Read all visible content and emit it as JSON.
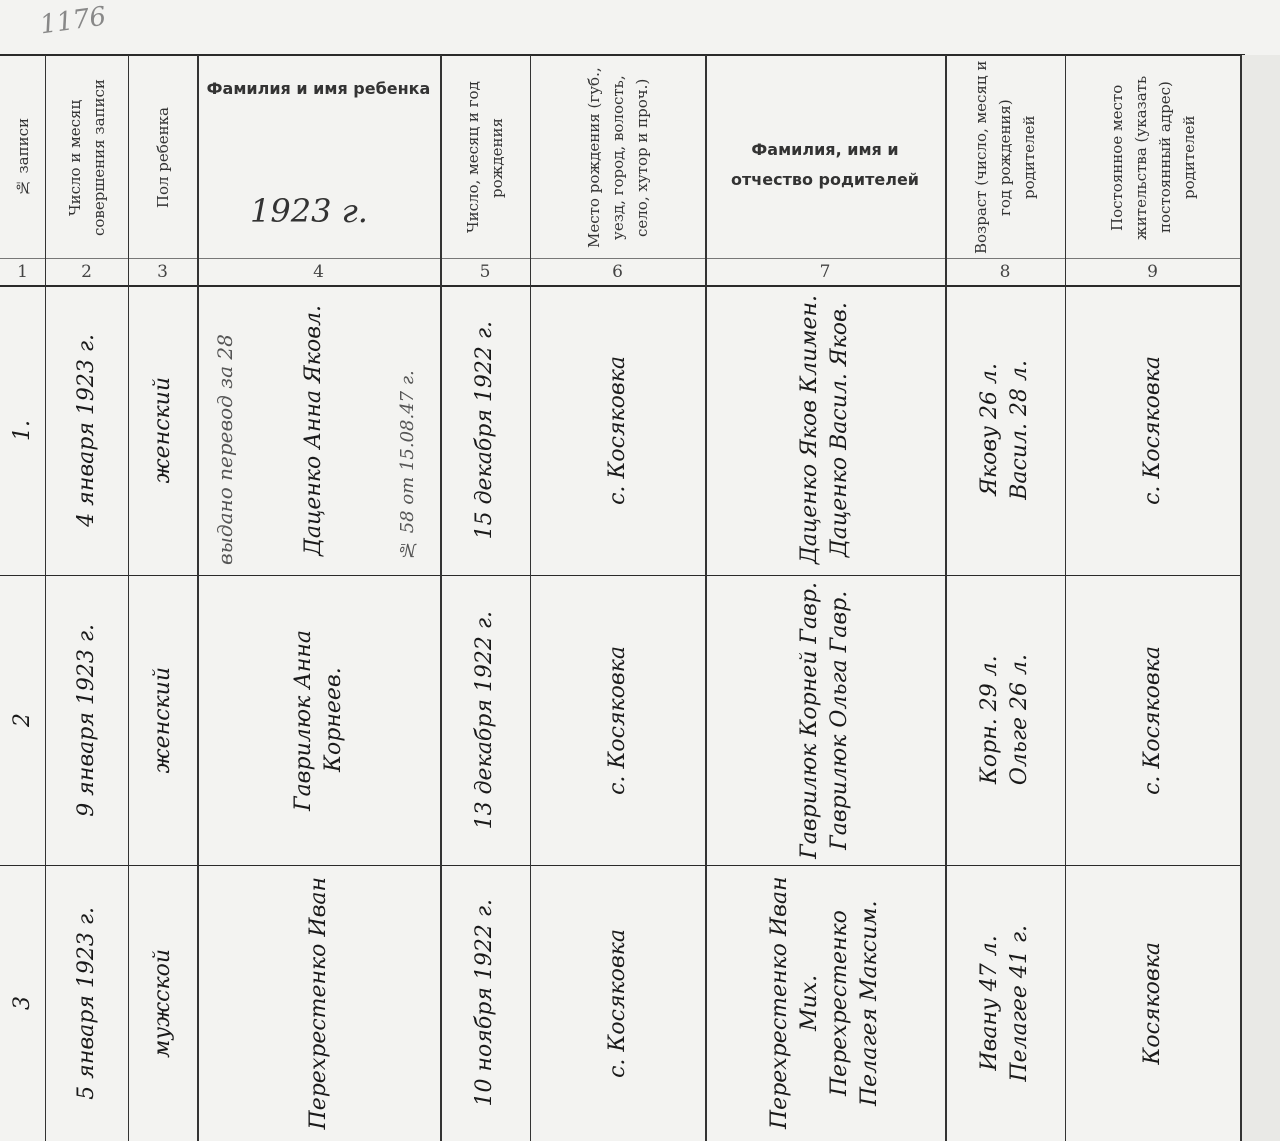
{
  "sheet_number": "1176",
  "headers": [
    {
      "n": "1",
      "label": "№ записи"
    },
    {
      "n": "2",
      "label": "Число и месяц совершения записи"
    },
    {
      "n": "3",
      "label": "Пол ребенка"
    },
    {
      "n": "4",
      "label": "Фамилия и имя ребенка"
    },
    {
      "n": "5",
      "label": "Число, месяц и год рождения"
    },
    {
      "n": "6",
      "label": "Место рождения (губ., уезд, город, волость, село, хутор и проч.)"
    },
    {
      "n": "7",
      "label": "Фамилия, имя и отчество родителей"
    },
    {
      "n": "8",
      "label": "Возраст (число, месяц и год рождения) родителей"
    },
    {
      "n": "9",
      "label": "Постоянное место жительства (указать постоянный адрес) родителей"
    }
  ],
  "annotations": {
    "year_stamp": "1923 г.",
    "issued_note": "выдано перевод за 28",
    "record_note": "№ 58 от 15.08.47 г."
  },
  "rows": [
    {
      "no": "1.",
      "date": "4 января 1923 г.",
      "sex": "женский",
      "child": "Даценко Анна Яковл.",
      "birth": "15 декабря 1922 г.",
      "place": "с. Косяковка",
      "parents": "Даценко Яков Климен. / Даценко Васил. Яков.",
      "ages": "Якову 26 л. / Васил. 28 л.",
      "residence": "с. Косяковка"
    },
    {
      "no": "2",
      "date": "9 января 1923 г.",
      "sex": "женский",
      "child": "Гаврилюк Анна Корнеев.",
      "birth": "13 декабря 1922 г.",
      "place": "с. Косяковка",
      "parents": "Гаврилюк Корней Гавр. / Гаврилюк Ольга Гавр.",
      "ages": "Корн. 29 л. / Ольге 26 л.",
      "residence": "с. Косяковка"
    },
    {
      "no": "3",
      "date": "5 января 1923 г.",
      "sex": "мужской",
      "child": "Перехрестенко Иван",
      "birth": "10 ноября 1922 г.",
      "place": "с. Косяковка",
      "parents": "Перехрестенко Иван Мих. / Перехрестенко Пелагея Максим.",
      "ages": "Ивану 47 л. / Пелагее 41 г.",
      "residence": "Косяковка"
    }
  ]
}
